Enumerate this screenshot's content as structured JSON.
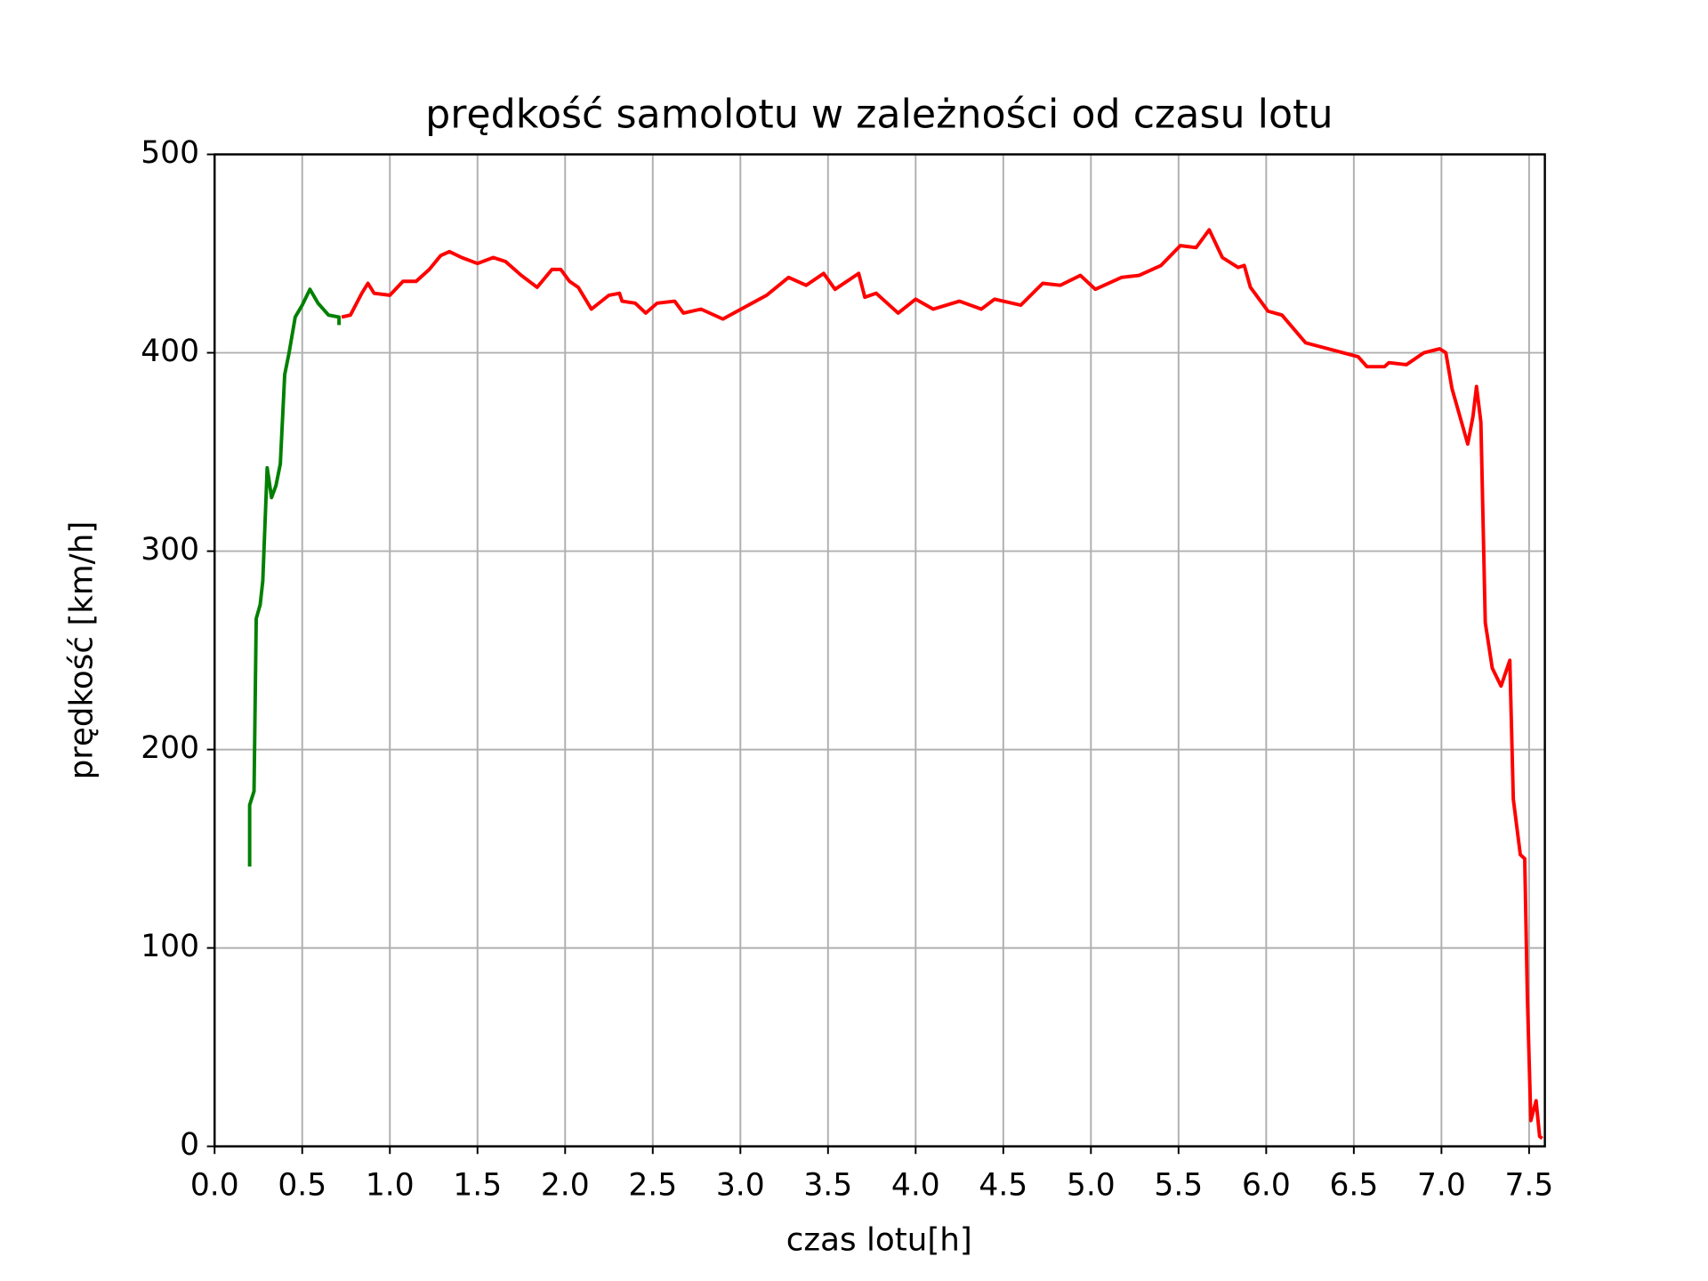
{
  "chart_data": {
    "type": "line",
    "title": "prędkość samolotu w zależności od czasu lotu",
    "xlabel": "czas lotu[h]",
    "ylabel": "prędkość [km/h]",
    "xlim": [
      0,
      7.59
    ],
    "ylim": [
      0,
      500
    ],
    "xticks": [
      {
        "value": 0,
        "label": "0.0"
      },
      0.5,
      {
        "value": 1,
        "label": "1.0"
      },
      1.5,
      {
        "value": 2,
        "label": "2.0"
      },
      2.5,
      {
        "value": 3,
        "label": "3.0"
      },
      3.5,
      {
        "value": 4,
        "label": "4.0"
      },
      4.5,
      {
        "value": 5,
        "label": "5.0"
      },
      5.5,
      {
        "value": 6,
        "label": "6.0"
      },
      6.5,
      {
        "value": 7,
        "label": "7.0"
      },
      7.5
    ],
    "yticks": [
      0,
      100,
      200,
      300,
      400,
      500
    ],
    "grid": true,
    "series": [
      {
        "color": "#008000",
        "x": [
          0.2,
          0.2,
          0.225,
          0.2375,
          0.26,
          0.275,
          0.3,
          0.325,
          0.35,
          0.375,
          0.4,
          0.425,
          0.46,
          0.5,
          0.544,
          0.59,
          0.65,
          0.71,
          0.71
        ],
        "values": [
          141,
          172,
          179,
          266,
          273,
          285,
          342,
          327,
          333,
          344,
          389,
          400,
          418,
          424,
          432,
          425,
          419,
          418,
          414
        ]
      },
      {
        "color": "#ff0000",
        "x": [
          0.725,
          0.775,
          0.84,
          0.875,
          0.91,
          1.0,
          1.075,
          1.15,
          1.225,
          1.29,
          1.34,
          1.41,
          1.5,
          1.59,
          1.66,
          1.75,
          1.84,
          1.925,
          1.975,
          2.025,
          2.075,
          2.15,
          2.25,
          2.31,
          2.325,
          2.4,
          2.46,
          2.525,
          2.625,
          2.675,
          2.775,
          2.9,
          3.025,
          3.15,
          3.275,
          3.375,
          3.475,
          3.54,
          3.675,
          3.71,
          3.775,
          3.9,
          4.0,
          4.1,
          4.25,
          4.375,
          4.45,
          4.6,
          4.725,
          4.825,
          4.94,
          5.025,
          5.175,
          5.275,
          5.4,
          5.51,
          5.6,
          5.675,
          5.75,
          5.84,
          5.875,
          5.91,
          6.01,
          6.09,
          6.225,
          6.525,
          6.575,
          6.675,
          6.7,
          6.8,
          6.9,
          6.99,
          7.025,
          7.06,
          7.15,
          7.18,
          7.2,
          7.225,
          7.25,
          7.29,
          7.34,
          7.39,
          7.41,
          7.45,
          7.475,
          7.49,
          7.51,
          7.54,
          7.56,
          7.575
        ],
        "values": [
          418,
          419,
          430,
          435,
          430,
          429,
          436,
          436,
          442,
          449,
          451,
          448,
          445,
          448,
          446,
          439,
          433,
          442,
          442,
          436,
          433,
          422,
          429,
          430,
          426,
          425,
          420,
          425,
          426,
          420,
          422,
          417,
          423,
          429,
          438,
          434,
          440,
          432,
          440,
          428,
          430,
          420,
          427,
          422,
          426,
          422,
          427,
          424,
          435,
          434,
          439,
          432,
          438,
          439,
          444,
          454,
          453,
          462,
          448,
          443,
          444,
          433,
          421,
          419,
          405,
          398,
          393,
          393,
          395,
          394,
          400,
          402,
          400,
          382,
          354,
          368,
          383,
          365,
          264,
          241,
          232,
          245,
          175,
          147,
          145,
          76,
          13,
          23,
          5,
          4
        ]
      }
    ]
  }
}
